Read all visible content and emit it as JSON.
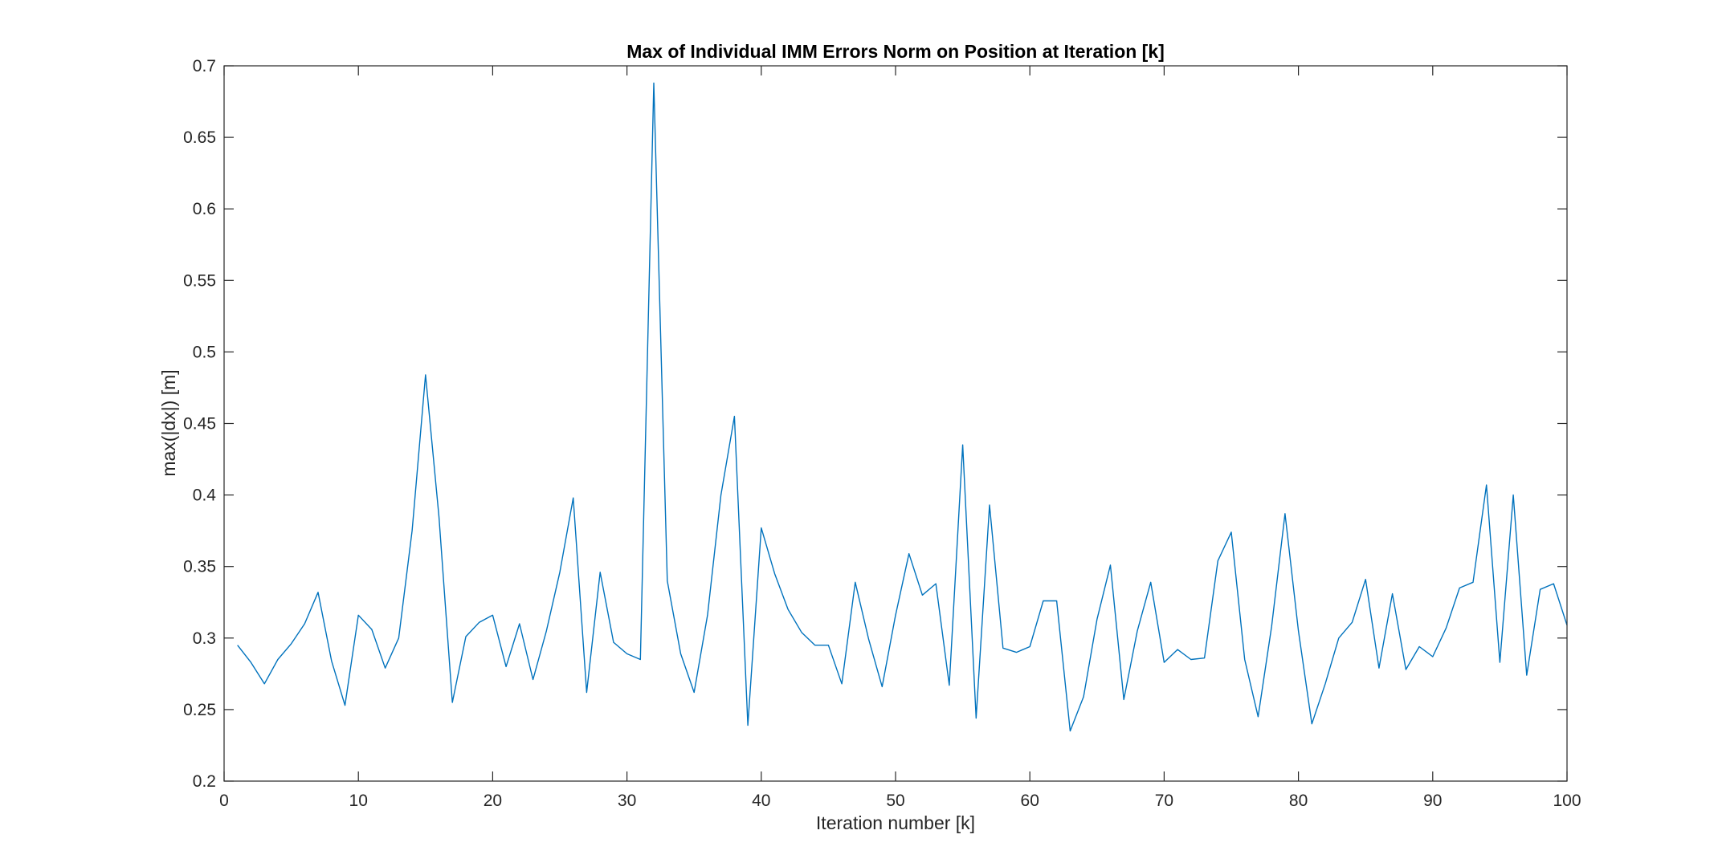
{
  "chart_data": {
    "type": "line",
    "title": "Max of Individual IMM Errors Norm on Position at Iteration [k]",
    "xlabel": "Iteration number [k]",
    "ylabel": "max(|dx|) [m]",
    "xlim": [
      0,
      100
    ],
    "ylim": [
      0.2,
      0.7
    ],
    "xticks": [
      0,
      10,
      20,
      30,
      40,
      50,
      60,
      70,
      80,
      90,
      100
    ],
    "xtick_labels": [
      "0",
      "10",
      "20",
      "30",
      "40",
      "50",
      "60",
      "70",
      "80",
      "90",
      "100"
    ],
    "yticks": [
      0.2,
      0.25,
      0.3,
      0.35,
      0.4,
      0.45,
      0.5,
      0.55,
      0.6,
      0.65,
      0.7
    ],
    "ytick_labels": [
      "0.2",
      "0.25",
      "0.3",
      "0.35",
      "0.4",
      "0.45",
      "0.5",
      "0.55",
      "0.6",
      "0.65",
      "0.7"
    ],
    "grid": false,
    "box": true,
    "colors": {
      "line": "#0072BD",
      "axes": "#262626",
      "background": "#ffffff"
    },
    "series": [
      {
        "x": [
          1,
          2,
          3,
          4,
          5,
          6,
          7,
          8,
          9,
          10,
          11,
          12,
          13,
          14,
          15,
          16,
          17,
          18,
          19,
          20,
          21,
          22,
          23,
          24,
          25,
          26,
          27,
          28,
          29,
          30,
          31,
          32,
          33,
          34,
          35,
          36,
          37,
          38,
          39,
          40,
          41,
          42,
          43,
          44,
          45,
          46,
          47,
          48,
          49,
          50,
          51,
          52,
          53,
          54,
          55,
          56,
          57,
          58,
          59,
          60,
          61,
          62,
          63,
          64,
          65,
          66,
          67,
          68,
          69,
          70,
          71,
          72,
          73,
          74,
          75,
          76,
          77,
          78,
          79,
          80,
          81,
          82,
          83,
          84,
          85,
          86,
          87,
          88,
          89,
          90,
          91,
          92,
          93,
          94,
          95,
          96,
          97,
          98,
          99,
          100
        ],
        "values": [
          0.295,
          0.283,
          0.268,
          0.285,
          0.296,
          0.31,
          0.332,
          0.284,
          0.253,
          0.316,
          0.306,
          0.279,
          0.3,
          0.375,
          0.484,
          0.385,
          0.255,
          0.301,
          0.311,
          0.316,
          0.28,
          0.31,
          0.271,
          0.305,
          0.346,
          0.398,
          0.262,
          0.346,
          0.297,
          0.289,
          0.285,
          0.688,
          0.34,
          0.289,
          0.262,
          0.316,
          0.4,
          0.455,
          0.239,
          0.377,
          0.345,
          0.32,
          0.304,
          0.295,
          0.295,
          0.268,
          0.339,
          0.299,
          0.266,
          0.316,
          0.359,
          0.33,
          0.338,
          0.267,
          0.435,
          0.244,
          0.393,
          0.293,
          0.29,
          0.294,
          0.326,
          0.326,
          0.235,
          0.259,
          0.313,
          0.351,
          0.257,
          0.305,
          0.339,
          0.283,
          0.292,
          0.285,
          0.286,
          0.354,
          0.374,
          0.285,
          0.245,
          0.308,
          0.387,
          0.305,
          0.24,
          0.268,
          0.3,
          0.311,
          0.341,
          0.279,
          0.331,
          0.278,
          0.294,
          0.287,
          0.307,
          0.335,
          0.339,
          0.407,
          0.283,
          0.4,
          0.274,
          0.334,
          0.338,
          0.309
        ]
      }
    ]
  }
}
